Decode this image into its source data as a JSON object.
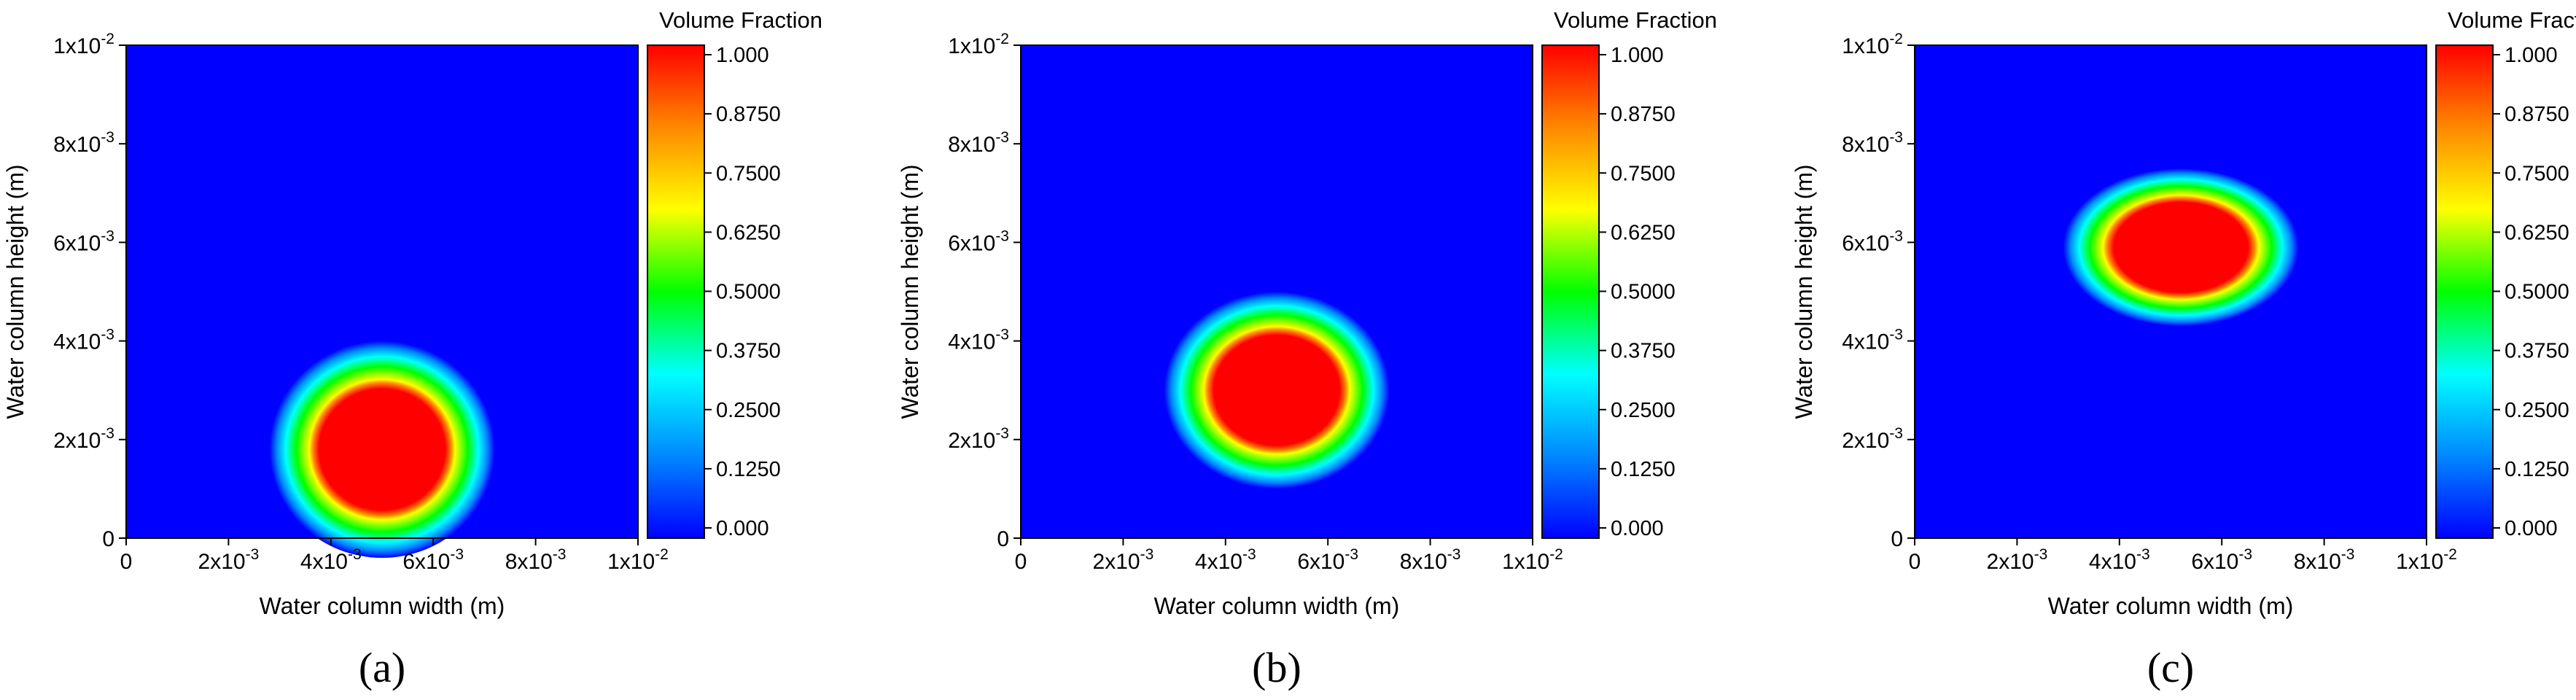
{
  "chart_data": [
    {
      "type": "heatmap",
      "caption": "(a)",
      "xlabel": "Water column width (m)",
      "ylabel": "Water column height (m)",
      "xlim": [
        0,
        0.01
      ],
      "ylim": [
        0,
        0.01
      ],
      "xticks": [
        {
          "value": 0,
          "base": "0",
          "exp": ""
        },
        {
          "value": 0.002,
          "base": "2x10",
          "exp": "-3"
        },
        {
          "value": 0.004,
          "base": "4x10",
          "exp": "-3"
        },
        {
          "value": 0.006,
          "base": "6x10",
          "exp": "-3"
        },
        {
          "value": 0.008,
          "base": "8x10",
          "exp": "-3"
        },
        {
          "value": 0.01,
          "base": "1x10",
          "exp": "-2"
        }
      ],
      "yticks": [
        {
          "value": 0,
          "base": "0",
          "exp": ""
        },
        {
          "value": 0.002,
          "base": "2x10",
          "exp": "-3"
        },
        {
          "value": 0.004,
          "base": "4x10",
          "exp": "-3"
        },
        {
          "value": 0.006,
          "base": "6x10",
          "exp": "-3"
        },
        {
          "value": 0.008,
          "base": "8x10",
          "exp": "-3"
        },
        {
          "value": 0.01,
          "base": "1x10",
          "exp": "-2"
        }
      ],
      "bubble": {
        "cx": 0.005,
        "cy": 0.0018,
        "rx": 0.0015,
        "ry": 0.0015,
        "fade": 0.0007
      },
      "colorbar": {
        "title": "Volume Fraction",
        "range": [
          0,
          1
        ],
        "ticks": [
          {
            "value": 1.0,
            "label": "1.000"
          },
          {
            "value": 0.875,
            "label": "0.8750"
          },
          {
            "value": 0.75,
            "label": "0.7500"
          },
          {
            "value": 0.625,
            "label": "0.6250"
          },
          {
            "value": 0.5,
            "label": "0.5000"
          },
          {
            "value": 0.375,
            "label": "0.3750"
          },
          {
            "value": 0.25,
            "label": "0.2500"
          },
          {
            "value": 0.125,
            "label": "0.1250"
          },
          {
            "value": 0.0,
            "label": "0.000"
          }
        ]
      }
    },
    {
      "type": "heatmap",
      "caption": "(b)",
      "xlabel": "Water column width (m)",
      "ylabel": "Water column height (m)",
      "xlim": [
        0,
        0.01
      ],
      "ylim": [
        0,
        0.01
      ],
      "xticks": [
        {
          "value": 0,
          "base": "0",
          "exp": ""
        },
        {
          "value": 0.002,
          "base": "2x10",
          "exp": "-3"
        },
        {
          "value": 0.004,
          "base": "4x10",
          "exp": "-3"
        },
        {
          "value": 0.006,
          "base": "6x10",
          "exp": "-3"
        },
        {
          "value": 0.008,
          "base": "8x10",
          "exp": "-3"
        },
        {
          "value": 0.01,
          "base": "1x10",
          "exp": "-2"
        }
      ],
      "yticks": [
        {
          "value": 0,
          "base": "0",
          "exp": ""
        },
        {
          "value": 0.002,
          "base": "2x10",
          "exp": "-3"
        },
        {
          "value": 0.004,
          "base": "4x10",
          "exp": "-3"
        },
        {
          "value": 0.006,
          "base": "6x10",
          "exp": "-3"
        },
        {
          "value": 0.008,
          "base": "8x10",
          "exp": "-3"
        },
        {
          "value": 0.01,
          "base": "1x10",
          "exp": "-2"
        }
      ],
      "bubble": {
        "cx": 0.005,
        "cy": 0.003,
        "rx": 0.0015,
        "ry": 0.0013,
        "fade": 0.0007
      },
      "colorbar": {
        "title": "Volume Fraction",
        "range": [
          0,
          1
        ],
        "ticks": [
          {
            "value": 1.0,
            "label": "1.000"
          },
          {
            "value": 0.875,
            "label": "0.8750"
          },
          {
            "value": 0.75,
            "label": "0.7500"
          },
          {
            "value": 0.625,
            "label": "0.6250"
          },
          {
            "value": 0.5,
            "label": "0.5000"
          },
          {
            "value": 0.375,
            "label": "0.3750"
          },
          {
            "value": 0.25,
            "label": "0.2500"
          },
          {
            "value": 0.125,
            "label": "0.1250"
          },
          {
            "value": 0.0,
            "label": "0.000"
          }
        ]
      }
    },
    {
      "type": "heatmap",
      "caption": "(c)",
      "xlabel": "Water column width (m)",
      "ylabel": "Water column height (m)",
      "xlim": [
        0,
        0.01
      ],
      "ylim": [
        0,
        0.01
      ],
      "xticks": [
        {
          "value": 0,
          "base": "0",
          "exp": ""
        },
        {
          "value": 0.002,
          "base": "2x10",
          "exp": "-3"
        },
        {
          "value": 0.004,
          "base": "4x10",
          "exp": "-3"
        },
        {
          "value": 0.006,
          "base": "6x10",
          "exp": "-3"
        },
        {
          "value": 0.008,
          "base": "8x10",
          "exp": "-3"
        },
        {
          "value": 0.01,
          "base": "1x10",
          "exp": "-2"
        }
      ],
      "yticks": [
        {
          "value": 0,
          "base": "0",
          "exp": ""
        },
        {
          "value": 0.002,
          "base": "2x10",
          "exp": "-3"
        },
        {
          "value": 0.004,
          "base": "4x10",
          "exp": "-3"
        },
        {
          "value": 0.006,
          "base": "6x10",
          "exp": "-3"
        },
        {
          "value": 0.008,
          "base": "8x10",
          "exp": "-3"
        },
        {
          "value": 0.01,
          "base": "1x10",
          "exp": "-2"
        }
      ],
      "bubble": {
        "cx": 0.0052,
        "cy": 0.0059,
        "rx": 0.0016,
        "ry": 0.0009,
        "fade": 0.0007
      },
      "colorbar": {
        "title": "Volume Fraction",
        "range": [
          0,
          1
        ],
        "ticks": [
          {
            "value": 1.0,
            "label": "1.000"
          },
          {
            "value": 0.875,
            "label": "0.8750"
          },
          {
            "value": 0.75,
            "label": "0.7500"
          },
          {
            "value": 0.625,
            "label": "0.6250"
          },
          {
            "value": 0.5,
            "label": "0.5000"
          },
          {
            "value": 0.375,
            "label": "0.3750"
          },
          {
            "value": 0.25,
            "label": "0.2500"
          },
          {
            "value": 0.125,
            "label": "0.1250"
          },
          {
            "value": 0.0,
            "label": "0.000"
          }
        ]
      }
    }
  ],
  "colors": {
    "scale": [
      "#0000ff",
      "#0088ff",
      "#00ffff",
      "#00ff00",
      "#ffff00",
      "#ff8800",
      "#ff0000"
    ]
  }
}
